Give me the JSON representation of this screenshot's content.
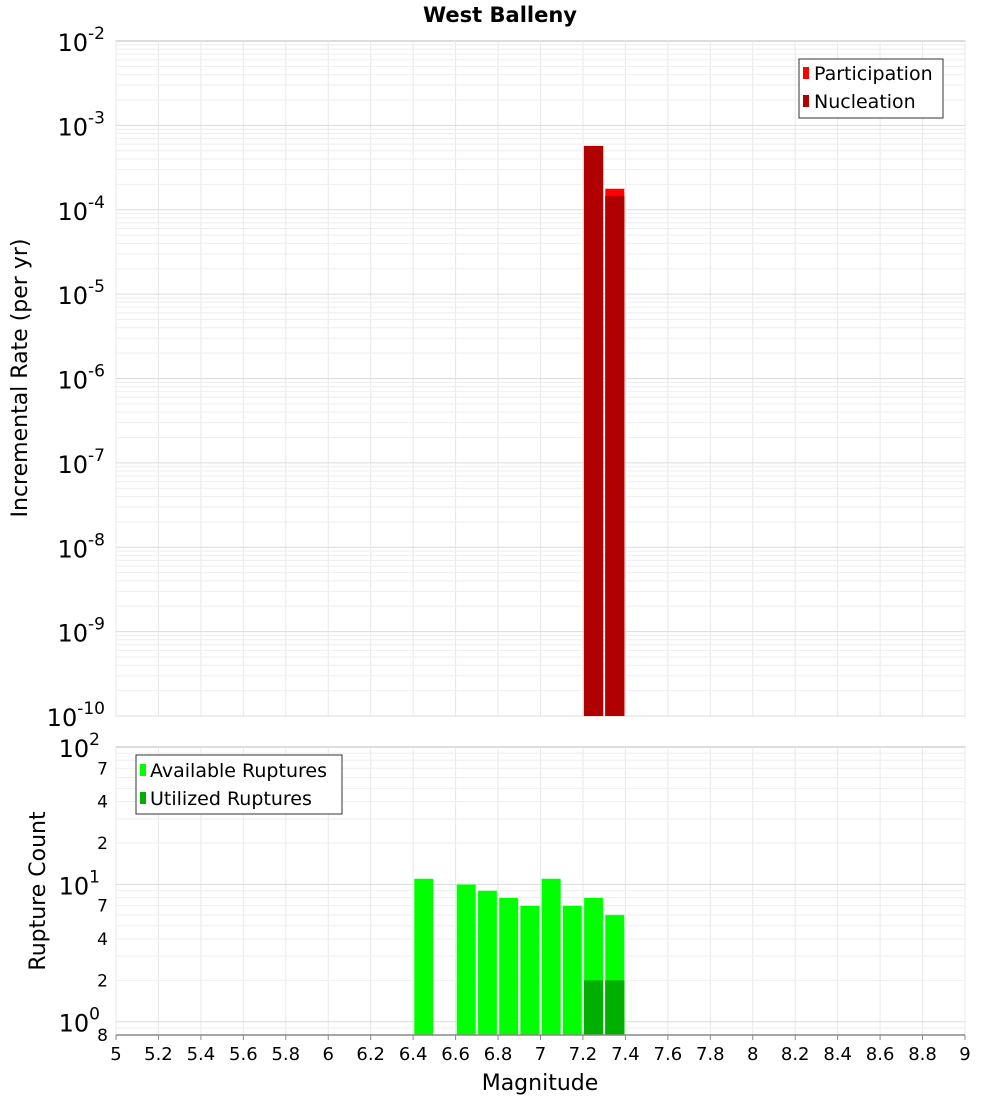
{
  "chart_data": [
    {
      "type": "bar",
      "title": "West Balleny",
      "xlabel": "",
      "ylabel": "Incremental Rate (per yr)",
      "yscale": "log",
      "ylim": [
        1e-10,
        0.01
      ],
      "xlim": [
        5,
        9
      ],
      "grid": true,
      "legend_position": "top-right",
      "series": [
        {
          "name": "Participation",
          "color": "#ff0000",
          "x": [
            7.25,
            7.35
          ],
          "values": [
            0.00057,
            0.000178
          ]
        },
        {
          "name": "Nucleation",
          "color": "#b00000",
          "x": [
            7.25,
            7.35
          ],
          "values": [
            0.00057,
            0.000145
          ]
        }
      ]
    },
    {
      "type": "bar",
      "xlabel": "Magnitude",
      "ylabel": "Rupture Count",
      "yscale": "log",
      "ylim": [
        0.8,
        100
      ],
      "xlim": [
        5,
        9
      ],
      "grid": true,
      "legend_position": "top-left",
      "xticks": [
        "5",
        "5.2",
        "5.4",
        "5.6",
        "5.8",
        "6",
        "6.2",
        "6.4",
        "6.6",
        "6.8",
        "7",
        "7.2",
        "7.4",
        "7.6",
        "7.8",
        "8",
        "8.2",
        "8.4",
        "8.6",
        "8.8",
        "9"
      ],
      "series": [
        {
          "name": "Available Ruptures",
          "color": "#00ff00",
          "x": [
            6.45,
            6.65,
            6.75,
            6.85,
            6.95,
            7.05,
            7.15,
            7.25,
            7.35
          ],
          "values": [
            11,
            10,
            9,
            8,
            7,
            11,
            7,
            8,
            6
          ]
        },
        {
          "name": "Utilized Ruptures",
          "color": "#00b000",
          "x": [
            7.25,
            7.35
          ],
          "values": [
            2,
            2
          ]
        }
      ]
    }
  ]
}
